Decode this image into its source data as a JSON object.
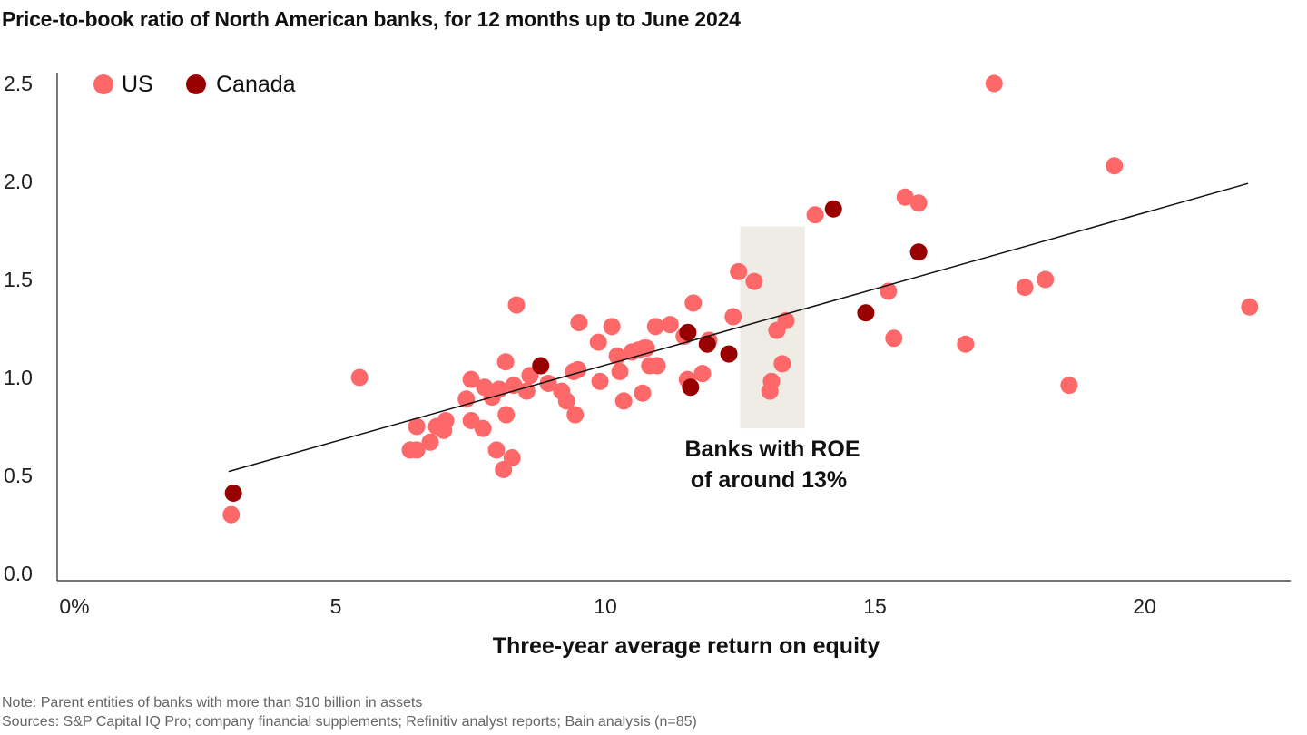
{
  "chart_data": {
    "type": "scatter",
    "title": "Price-to-book ratio of North American banks, for 12 months up to June 2024",
    "xlabel": "Three-year average return on equity",
    "ylabel": "",
    "xlim": [
      0,
      23
    ],
    "ylim": [
      0,
      2.5
    ],
    "x_ticks": [
      {
        "v": 0,
        "label": "0%"
      },
      {
        "v": 5,
        "label": "5"
      },
      {
        "v": 10,
        "label": "10"
      },
      {
        "v": 15,
        "label": "15"
      },
      {
        "v": 20,
        "label": "20"
      }
    ],
    "y_ticks": [
      {
        "v": 0,
        "label": "0.0"
      },
      {
        "v": 0.5,
        "label": "0.5"
      },
      {
        "v": 1,
        "label": "1.0"
      },
      {
        "v": 1.5,
        "label": "1.5"
      },
      {
        "v": 2,
        "label": "2.0"
      },
      {
        "v": 2.5,
        "label": "2.5"
      }
    ],
    "grid": false,
    "legend_position": "top-left",
    "series": [
      {
        "name": "US",
        "color": "#fe6868",
        "points": [
          [
            3.06,
            0.3
          ],
          [
            5.44,
            1.0
          ],
          [
            6.5,
            0.75
          ],
          [
            6.38,
            0.63
          ],
          [
            6.5,
            0.63
          ],
          [
            6.75,
            0.67
          ],
          [
            6.87,
            0.75
          ],
          [
            7.0,
            0.73
          ],
          [
            7.04,
            0.78
          ],
          [
            7.42,
            0.89
          ],
          [
            7.51,
            0.99
          ],
          [
            7.51,
            0.78
          ],
          [
            7.73,
            0.74
          ],
          [
            7.76,
            0.95
          ],
          [
            7.9,
            0.9
          ],
          [
            7.98,
            0.63
          ],
          [
            8.03,
            0.94
          ],
          [
            8.11,
            0.53
          ],
          [
            8.15,
            1.08
          ],
          [
            8.16,
            0.81
          ],
          [
            8.27,
            0.59
          ],
          [
            8.3,
            0.96
          ],
          [
            8.35,
            1.37
          ],
          [
            8.54,
            0.93
          ],
          [
            8.6,
            1.01
          ],
          [
            8.94,
            0.97
          ],
          [
            9.19,
            0.93
          ],
          [
            9.28,
            0.88
          ],
          [
            9.41,
            1.03
          ],
          [
            9.44,
            0.81
          ],
          [
            9.49,
            1.04
          ],
          [
            9.51,
            1.28
          ],
          [
            9.87,
            1.18
          ],
          [
            9.9,
            0.98
          ],
          [
            10.12,
            1.26
          ],
          [
            10.22,
            1.11
          ],
          [
            10.27,
            1.03
          ],
          [
            10.34,
            0.88
          ],
          [
            10.49,
            1.13
          ],
          [
            10.61,
            1.14
          ],
          [
            10.72,
            1.15
          ],
          [
            10.69,
            0.92
          ],
          [
            10.76,
            1.15
          ],
          [
            10.82,
            1.06
          ],
          [
            10.93,
            1.26
          ],
          [
            10.96,
            1.06
          ],
          [
            11.2,
            1.27
          ],
          [
            11.46,
            1.21
          ],
          [
            11.52,
            0.99
          ],
          [
            11.63,
            1.38
          ],
          [
            11.8,
            1.02
          ],
          [
            11.92,
            1.19
          ],
          [
            12.37,
            1.31
          ],
          [
            12.47,
            1.54
          ],
          [
            12.76,
            1.49
          ],
          [
            13.08,
            0.98
          ],
          [
            13.05,
            0.93
          ],
          [
            13.18,
            1.24
          ],
          [
            13.28,
            1.07
          ],
          [
            13.35,
            1.29
          ],
          [
            13.89,
            1.83
          ],
          [
            15.25,
            1.44
          ],
          [
            15.35,
            1.2
          ],
          [
            15.56,
            1.92
          ],
          [
            15.81,
            1.89
          ],
          [
            16.68,
            1.17
          ],
          [
            17.21,
            2.5
          ],
          [
            17.78,
            1.46
          ],
          [
            18.16,
            1.5
          ],
          [
            18.6,
            0.96
          ],
          [
            19.44,
            2.08
          ],
          [
            21.95,
            1.36
          ]
        ]
      },
      {
        "name": "Canada",
        "color": "#990000",
        "points": [
          [
            3.1,
            0.41
          ],
          [
            8.8,
            1.06
          ],
          [
            11.53,
            1.23
          ],
          [
            11.89,
            1.17
          ],
          [
            12.29,
            1.12
          ],
          [
            11.58,
            0.95
          ],
          [
            14.23,
            1.86
          ],
          [
            14.83,
            1.33
          ],
          [
            15.81,
            1.64
          ]
        ]
      }
    ],
    "trendline": [
      [
        3.01,
        0.52
      ],
      [
        21.92,
        1.99
      ]
    ],
    "highlight_band": {
      "x": [
        12.5,
        13.7
      ],
      "y": [
        0.74,
        1.77
      ],
      "color": "#efebe5"
    },
    "annotation": [
      "Banks with ROE",
      "of around 13%"
    ]
  },
  "notes": [
    "Note: Parent entities of banks with more than $10 billion in assets",
    "Sources: S&P Capital IQ Pro; company financial supplements; Refinitiv analyst reports; Bain analysis (n=85)"
  ]
}
